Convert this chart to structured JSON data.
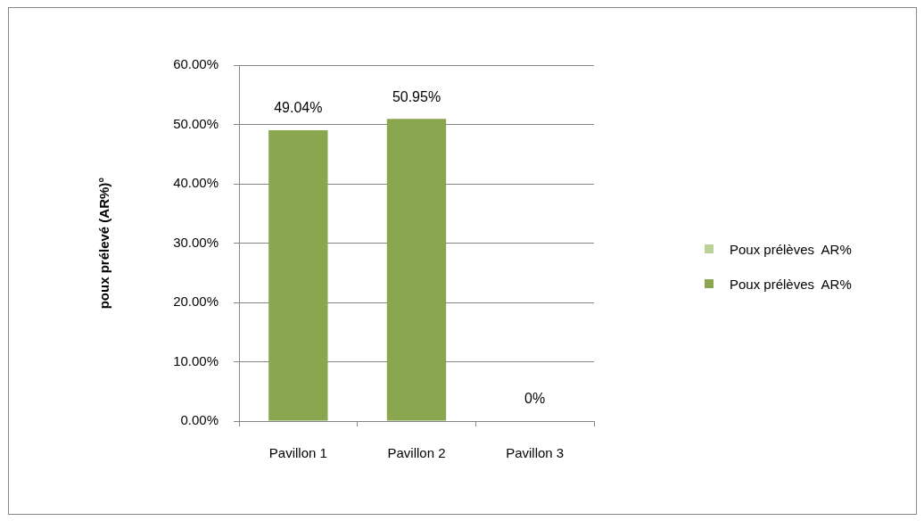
{
  "chart_data": {
    "type": "bar",
    "categories": [
      "Pavillon 1",
      "Pavillon 2",
      "Pavillon 3"
    ],
    "series": [
      {
        "name": "Poux prélèves  AR%",
        "color": "#bbd197",
        "values": [
          null,
          null,
          null
        ]
      },
      {
        "name": "Poux prélèves  AR%",
        "color": "#8aa64f",
        "values": [
          49.04,
          50.95,
          0
        ],
        "value_labels": [
          "49.04%",
          "50.95%",
          "0%"
        ]
      }
    ],
    "stacked": true,
    "ylabel": "poux prélevé (AR%)°",
    "ylim": [
      0,
      60
    ],
    "yticks": [
      {
        "value": 0,
        "label": "0.00%"
      },
      {
        "value": 10,
        "label": "10.00%"
      },
      {
        "value": 20,
        "label": "20.00%"
      },
      {
        "value": 30,
        "label": "30.00%"
      },
      {
        "value": 40,
        "label": "40.00%"
      },
      {
        "value": 50,
        "label": "50.00%"
      },
      {
        "value": 60,
        "label": "60.00%"
      }
    ],
    "grid": "y",
    "legend": "right"
  }
}
